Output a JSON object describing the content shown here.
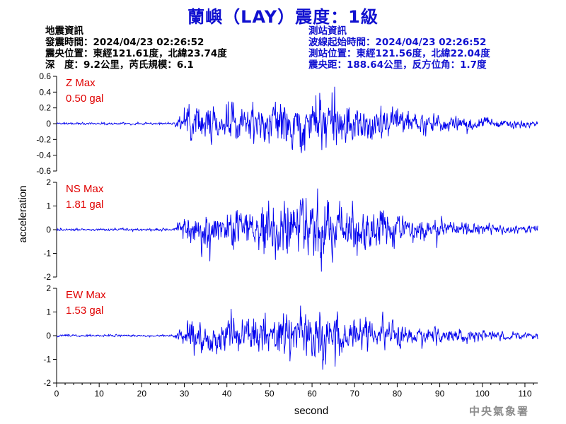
{
  "header": {
    "title": "蘭嶼（LAY）震度：1級"
  },
  "quake_info": {
    "heading": "地震資訊",
    "origin_time": "發震時間：2024/04/23 02:26:52",
    "epicenter": "震央位置：東經121.61度，北緯23.74度",
    "depth_magnitude": "深　度：9.2公里，芮氏規模：6.1"
  },
  "station_info": {
    "heading": "測站資訊",
    "wave_start": "波線起始時間：2024/04/23 02:26:52",
    "location": "測站位置：東經121.56度，北緯22.04度",
    "distance_azimuth": "震央距：188.64公里，反方位角：1.7度"
  },
  "footer": {
    "agency": "中央氣象署"
  },
  "colors": {
    "trace": "#0000ee",
    "title": "#1010d0",
    "max_label": "#e00000",
    "station_info": "#1010d0"
  },
  "chart_data": {
    "type": "line",
    "xlabel": "second",
    "ylabel": "acceleration",
    "xlim": [
      0,
      113
    ],
    "xticks": [
      0,
      10,
      20,
      30,
      40,
      50,
      60,
      70,
      80,
      90,
      100,
      110
    ],
    "grid": false,
    "sample_interval_s": 0.1,
    "envelope_note": "low amplitude until ~27 s, strong shaking ~30-75 s peaking near 55-65 s, gradual decay to 113 s",
    "series": [
      {
        "name": "Z",
        "max_label": "Z Max",
        "max_value": "0.50 gal",
        "peak": 0.5,
        "ylim": [
          -0.6,
          0.6
        ],
        "yticks": [
          0.6,
          0.4,
          0.2,
          0,
          -0.2,
          -0.4,
          -0.6
        ]
      },
      {
        "name": "NS",
        "max_label": "NS Max",
        "max_value": "1.81 gal",
        "peak": 1.81,
        "ylim": [
          -2,
          2
        ],
        "yticks": [
          2,
          1,
          0,
          -1,
          -2
        ]
      },
      {
        "name": "EW",
        "max_label": "EW Max",
        "max_value": "1.53 gal",
        "peak": 1.53,
        "ylim": [
          -2,
          2
        ],
        "yticks": [
          2,
          1,
          0,
          -1,
          -2
        ]
      }
    ]
  }
}
